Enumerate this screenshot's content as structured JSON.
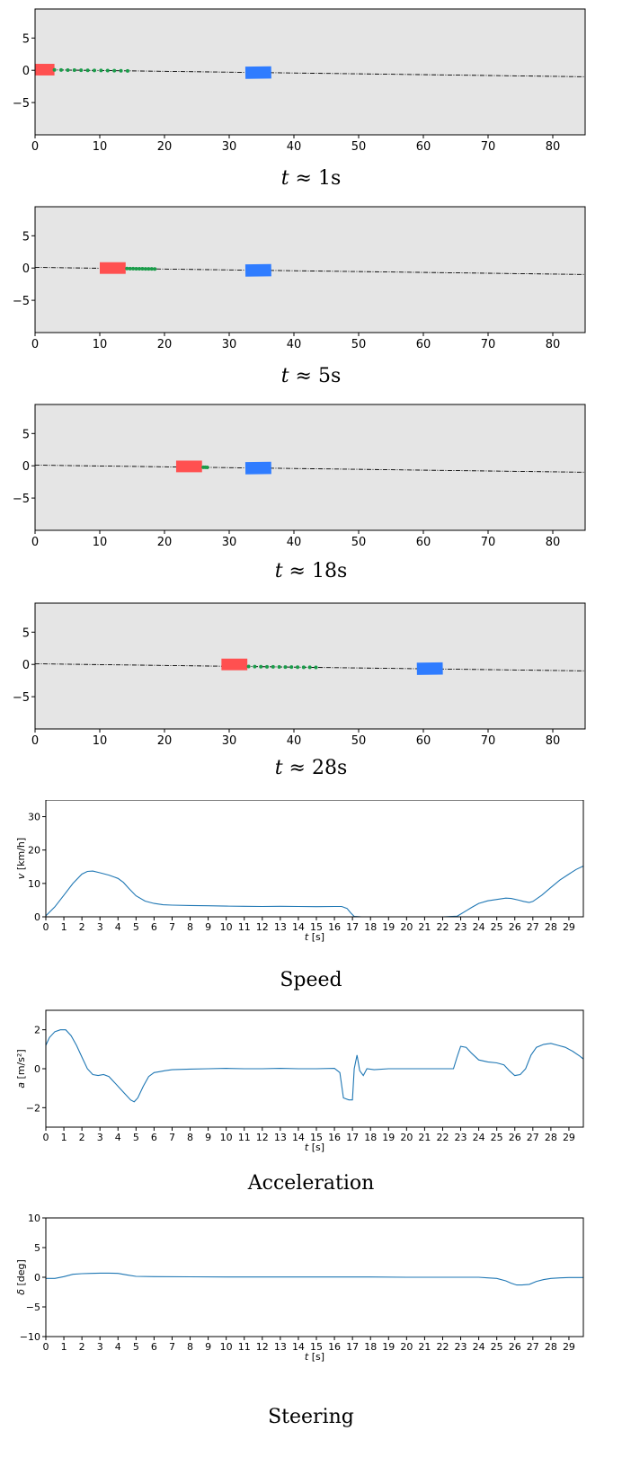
{
  "chart_data": [
    {
      "type": "scatter",
      "title": "",
      "caption": {
        "var": "t",
        "sym": "≈",
        "val": "1s"
      },
      "xlim": [
        0,
        85
      ],
      "ylim": [
        -10,
        9.5
      ],
      "xticks": [
        0,
        10,
        20,
        30,
        40,
        50,
        60,
        70,
        80
      ],
      "yticks": [
        5,
        0,
        -5
      ],
      "ytick_labels": [
        "5",
        "0",
        "−5"
      ],
      "background": "#e5e5e5",
      "path": {
        "x": [
          0,
          85
        ],
        "y": [
          0.1,
          -1.0
        ],
        "color": "#000000"
      },
      "ego_vehicle": {
        "x": 1.2,
        "y": 0.1,
        "length": 3.0,
        "width": 1.8,
        "color": "#ff5050"
      },
      "target_vehicle": {
        "x": 34.5,
        "y": -0.35,
        "length": 4.0,
        "width": 1.9,
        "color": "#2f7cff"
      },
      "prediction": {
        "x0": 3.0,
        "x1": 14.3,
        "n": 12,
        "color": "#1a9c4a"
      }
    },
    {
      "type": "scatter",
      "title": "",
      "caption": {
        "var": "t",
        "sym": "≈",
        "val": "5s"
      },
      "xlim": [
        0,
        85
      ],
      "ylim": [
        -10,
        9.5
      ],
      "xticks": [
        0,
        10,
        20,
        30,
        40,
        50,
        60,
        70,
        80
      ],
      "yticks": [
        5,
        0,
        -5
      ],
      "ytick_labels": [
        "5",
        "0",
        "−5"
      ],
      "background": "#e5e5e5",
      "path": {
        "x": [
          0,
          85
        ],
        "y": [
          0.1,
          -1.0
        ],
        "color": "#000000"
      },
      "ego_vehicle": {
        "x": 12.0,
        "y": 0.0,
        "length": 4.0,
        "width": 1.8,
        "color": "#ff5050"
      },
      "target_vehicle": {
        "x": 34.5,
        "y": -0.35,
        "length": 4.0,
        "width": 1.9,
        "color": "#2f7cff"
      },
      "prediction": {
        "x0": 14.2,
        "x1": 18.5,
        "n": 10,
        "color": "#1a9c4a"
      }
    },
    {
      "type": "scatter",
      "title": "",
      "caption": {
        "var": "t",
        "sym": "≈",
        "val": "18s"
      },
      "xlim": [
        0,
        85
      ],
      "ylim": [
        -10,
        9.5
      ],
      "xticks": [
        0,
        10,
        20,
        30,
        40,
        50,
        60,
        70,
        80
      ],
      "yticks": [
        5,
        0,
        -5
      ],
      "ytick_labels": [
        "5",
        "0",
        "−5"
      ],
      "background": "#e5e5e5",
      "path": {
        "x": [
          0,
          85
        ],
        "y": [
          0.1,
          -1.0
        ],
        "color": "#000000"
      },
      "ego_vehicle": {
        "x": 23.8,
        "y": -0.1,
        "length": 4.0,
        "width": 1.8,
        "color": "#ff5050"
      },
      "target_vehicle": {
        "x": 34.5,
        "y": -0.35,
        "length": 4.0,
        "width": 1.9,
        "color": "#2f7cff"
      },
      "prediction": {
        "x0": 26.0,
        "x1": 26.6,
        "n": 3,
        "color": "#1a9c4a"
      }
    },
    {
      "type": "scatter",
      "title": "",
      "caption": {
        "var": "t",
        "sym": "≈",
        "val": "28s"
      },
      "xlim": [
        0,
        85
      ],
      "ylim": [
        -10,
        9.5
      ],
      "xticks": [
        0,
        10,
        20,
        30,
        40,
        50,
        60,
        70,
        80
      ],
      "yticks": [
        5,
        0,
        -5
      ],
      "ytick_labels": [
        "5",
        "0",
        "−5"
      ],
      "background": "#e5e5e5",
      "path": {
        "x": [
          0,
          85
        ],
        "y": [
          0.1,
          -1.0
        ],
        "color": "#000000"
      },
      "ego_vehicle": {
        "x": 30.8,
        "y": 0.0,
        "length": 4.0,
        "width": 1.8,
        "color": "#ff5050"
      },
      "target_vehicle": {
        "x": 61.0,
        "y": -0.65,
        "length": 4.0,
        "width": 1.9,
        "color": "#2f7cff"
      },
      "prediction": {
        "x0": 33.0,
        "x1": 43.4,
        "n": 12,
        "color": "#1a9c4a"
      }
    },
    {
      "type": "line",
      "title": "Speed",
      "xlabel_var": "t",
      "xlabel_unit": "[s]",
      "ylabel_var": "v",
      "ylabel_unit": "[km/h]",
      "xlim": [
        0,
        29.8
      ],
      "ylim": [
        0,
        35
      ],
      "xticks": [
        0,
        1,
        2,
        3,
        4,
        5,
        6,
        7,
        8,
        9,
        10,
        11,
        12,
        13,
        14,
        15,
        16,
        17,
        18,
        19,
        20,
        21,
        22,
        23,
        24,
        25,
        26,
        27,
        28,
        29
      ],
      "yticks": [
        0,
        10,
        20,
        30
      ],
      "ytick_labels": [
        "0",
        "10",
        "20",
        "30"
      ],
      "color": "#1f77b4",
      "x": [
        0,
        0.5,
        1,
        1.5,
        2,
        2.3,
        2.6,
        3,
        3.5,
        4,
        4.3,
        4.6,
        5,
        5.5,
        6,
        6.5,
        7,
        8,
        9,
        10,
        11,
        12,
        13,
        14,
        15,
        16,
        16.4,
        16.7,
        16.9,
        17.1,
        17.5,
        18,
        20,
        22,
        22.8,
        23,
        23.3,
        23.6,
        24,
        24.5,
        25,
        25.5,
        25.8,
        26.2,
        26.5,
        26.8,
        27,
        27.5,
        28,
        28.5,
        29,
        29.4,
        29.8
      ],
      "values": [
        0.3,
        3,
        6.5,
        10,
        12.8,
        13.6,
        13.7,
        13.2,
        12.5,
        11.5,
        10.3,
        8.5,
        6.3,
        4.7,
        4.0,
        3.6,
        3.5,
        3.4,
        3.3,
        3.2,
        3.15,
        3.1,
        3.15,
        3.1,
        3.05,
        3.1,
        3.1,
        2.5,
        1.2,
        0.1,
        0,
        0,
        0,
        0,
        0.2,
        0.8,
        1.8,
        2.8,
        4.0,
        4.8,
        5.2,
        5.6,
        5.5,
        5.0,
        4.6,
        4.3,
        4.6,
        6.5,
        8.8,
        11.0,
        12.8,
        14.2,
        15.2
      ]
    },
    {
      "type": "line",
      "title": "Acceleration",
      "xlabel_var": "t",
      "xlabel_unit": "[s]",
      "ylabel_var": "a",
      "ylabel_unit": "[m/s²]",
      "xlim": [
        0,
        29.8
      ],
      "ylim": [
        -3,
        3
      ],
      "xticks": [
        0,
        1,
        2,
        3,
        4,
        5,
        6,
        7,
        8,
        9,
        10,
        11,
        12,
        13,
        14,
        15,
        16,
        17,
        18,
        19,
        20,
        21,
        22,
        23,
        24,
        25,
        26,
        27,
        28,
        29
      ],
      "yticks": [
        2,
        0,
        -2
      ],
      "ytick_labels": [
        "2",
        "0",
        "−2"
      ],
      "color": "#1f77b4",
      "x": [
        0,
        0.2,
        0.5,
        0.8,
        1.1,
        1.4,
        1.7,
        2.0,
        2.3,
        2.6,
        2.9,
        3.2,
        3.5,
        3.8,
        4.1,
        4.4,
        4.7,
        4.9,
        5.1,
        5.4,
        5.7,
        6.0,
        6.3,
        6.6,
        7,
        8,
        9,
        10,
        11,
        12,
        13,
        14,
        15,
        16,
        16.3,
        16.5,
        16.8,
        17.0,
        17.1,
        17.25,
        17.4,
        17.6,
        17.8,
        18.2,
        19,
        20,
        21,
        22,
        22.6,
        22.8,
        23.0,
        23.3,
        23.6,
        24.0,
        24.5,
        25.0,
        25.4,
        25.7,
        26.0,
        26.3,
        26.6,
        26.9,
        27.2,
        27.6,
        28.0,
        28.4,
        28.8,
        29.2,
        29.6,
        29.8
      ],
      "values": [
        1.2,
        1.6,
        1.9,
        2.0,
        2.0,
        1.7,
        1.2,
        0.6,
        0.0,
        -0.3,
        -0.35,
        -0.3,
        -0.4,
        -0.7,
        -1.0,
        -1.3,
        -1.6,
        -1.7,
        -1.5,
        -0.9,
        -0.4,
        -0.2,
        -0.15,
        -0.1,
        -0.05,
        -0.02,
        0.0,
        0.02,
        0.0,
        0.0,
        0.02,
        0.0,
        0.0,
        0.02,
        -0.2,
        -1.5,
        -1.6,
        -1.6,
        0.0,
        0.7,
        -0.1,
        -0.35,
        0.0,
        -0.05,
        0.0,
        0.0,
        0.0,
        0.0,
        0.0,
        0.6,
        1.15,
        1.1,
        0.8,
        0.45,
        0.35,
        0.3,
        0.2,
        -0.1,
        -0.35,
        -0.3,
        0.0,
        0.7,
        1.1,
        1.25,
        1.3,
        1.2,
        1.1,
        0.9,
        0.65,
        0.5
      ]
    },
    {
      "type": "line",
      "title": "Steering",
      "xlabel_var": "t",
      "xlabel_unit": "[s]",
      "ylabel_var": "δ",
      "ylabel_unit": "[deg]",
      "xlim": [
        0,
        29.8
      ],
      "ylim": [
        -10,
        10
      ],
      "xticks": [
        0,
        1,
        2,
        3,
        4,
        5,
        6,
        7,
        8,
        9,
        10,
        11,
        12,
        13,
        14,
        15,
        16,
        17,
        18,
        19,
        20,
        21,
        22,
        23,
        24,
        25,
        26,
        27,
        28,
        29
      ],
      "yticks": [
        10,
        5,
        0,
        -5,
        -10
      ],
      "ytick_labels": [
        "10",
        "5",
        "0",
        "−5",
        "−10"
      ],
      "color": "#1f77b4",
      "x": [
        0,
        0.5,
        1,
        1.5,
        2,
        2.5,
        3,
        3.5,
        4,
        4.5,
        5,
        6,
        8,
        10,
        12,
        14,
        16,
        18,
        20,
        22,
        24,
        24.5,
        25,
        25.5,
        25.8,
        26.1,
        26.4,
        26.8,
        27.2,
        27.6,
        28,
        28.5,
        29,
        29.8
      ],
      "values": [
        -0.2,
        -0.2,
        0.1,
        0.5,
        0.6,
        0.65,
        0.7,
        0.7,
        0.65,
        0.4,
        0.15,
        0.1,
        0.08,
        0.05,
        0.05,
        0.05,
        0.05,
        0.05,
        0.0,
        0.0,
        0.0,
        -0.1,
        -0.2,
        -0.6,
        -1.0,
        -1.3,
        -1.3,
        -1.2,
        -0.7,
        -0.4,
        -0.2,
        -0.1,
        -0.05,
        -0.05
      ]
    }
  ]
}
